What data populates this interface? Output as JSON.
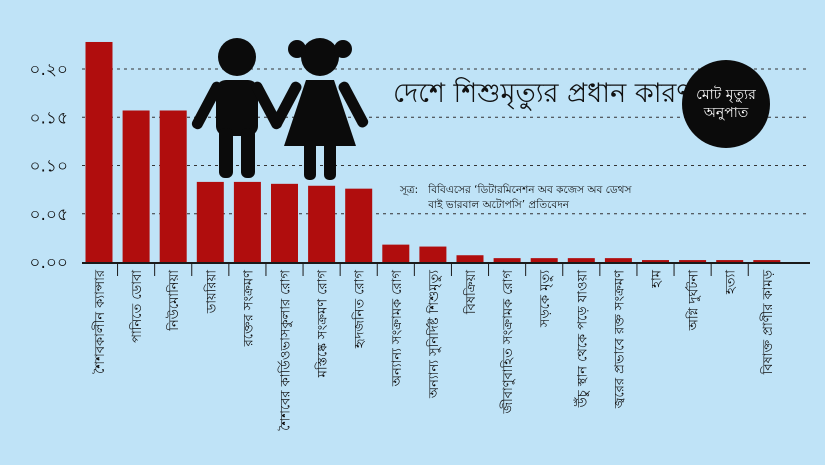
{
  "title": "দেশে শিশুমৃত্যুর প্রধান কারণ",
  "badge": {
    "line1": "মোট মৃত্যুর",
    "line2": "অনুপাত"
  },
  "source": {
    "label": "সূত্র:",
    "text": "বিবিএসের ‘ডিটারমিনেশন অব কজেস অব ডেথস বাই ভারবাল অটোপসি’ প্রতিবেদন"
  },
  "colors": {
    "background": "#bfe3f7",
    "bar": "#b00d0d",
    "axis": "#1a1a1a",
    "grid": "#333333"
  },
  "icons": [
    "boy-icon",
    "girl-icon"
  ],
  "chart_data": {
    "type": "bar",
    "categories": [
      "শৈশবকালীন ক্যান্সার",
      "পানিতে ডোবা",
      "নিউমোনিয়া",
      "ডায়রিয়া",
      "রক্তের সংক্রমণ",
      "শৈশবের কার্ডিওভাসকুলার রোগ",
      "মস্তিষ্কে সংক্রমণ রোগ",
      "হৃদজনিত রোগ",
      "অন্যান্য সংক্রামক রোগ",
      "অন্যান্য সুনির্দিষ্ট শিশুমৃত্যু",
      "বিষক্রিয়া",
      "জীবাণুবাহিত সংক্রামক রোগ",
      "সড়কে মৃত্যু",
      "উঁচু স্থান থেকে পড়ে যাওয়া",
      "জ্বরের প্রভাবে রক্ত সংক্রমণ",
      "হাম",
      "অগ্নি দুর্ঘটনা",
      "হত্যা",
      "বিষাক্ত প্রাণীর কামড়"
    ],
    "values": [
      0.228,
      0.157,
      0.157,
      0.083,
      0.083,
      0.081,
      0.079,
      0.076,
      0.018,
      0.016,
      0.007,
      0.004,
      0.004,
      0.004,
      0.004,
      0.002,
      0.002,
      0.002,
      0.002
    ],
    "yticks": [
      "০.০০",
      "০.০৫",
      "০.১০",
      "০.১৫",
      "০.২০"
    ],
    "ylim": [
      0,
      0.25
    ],
    "grid": true
  }
}
